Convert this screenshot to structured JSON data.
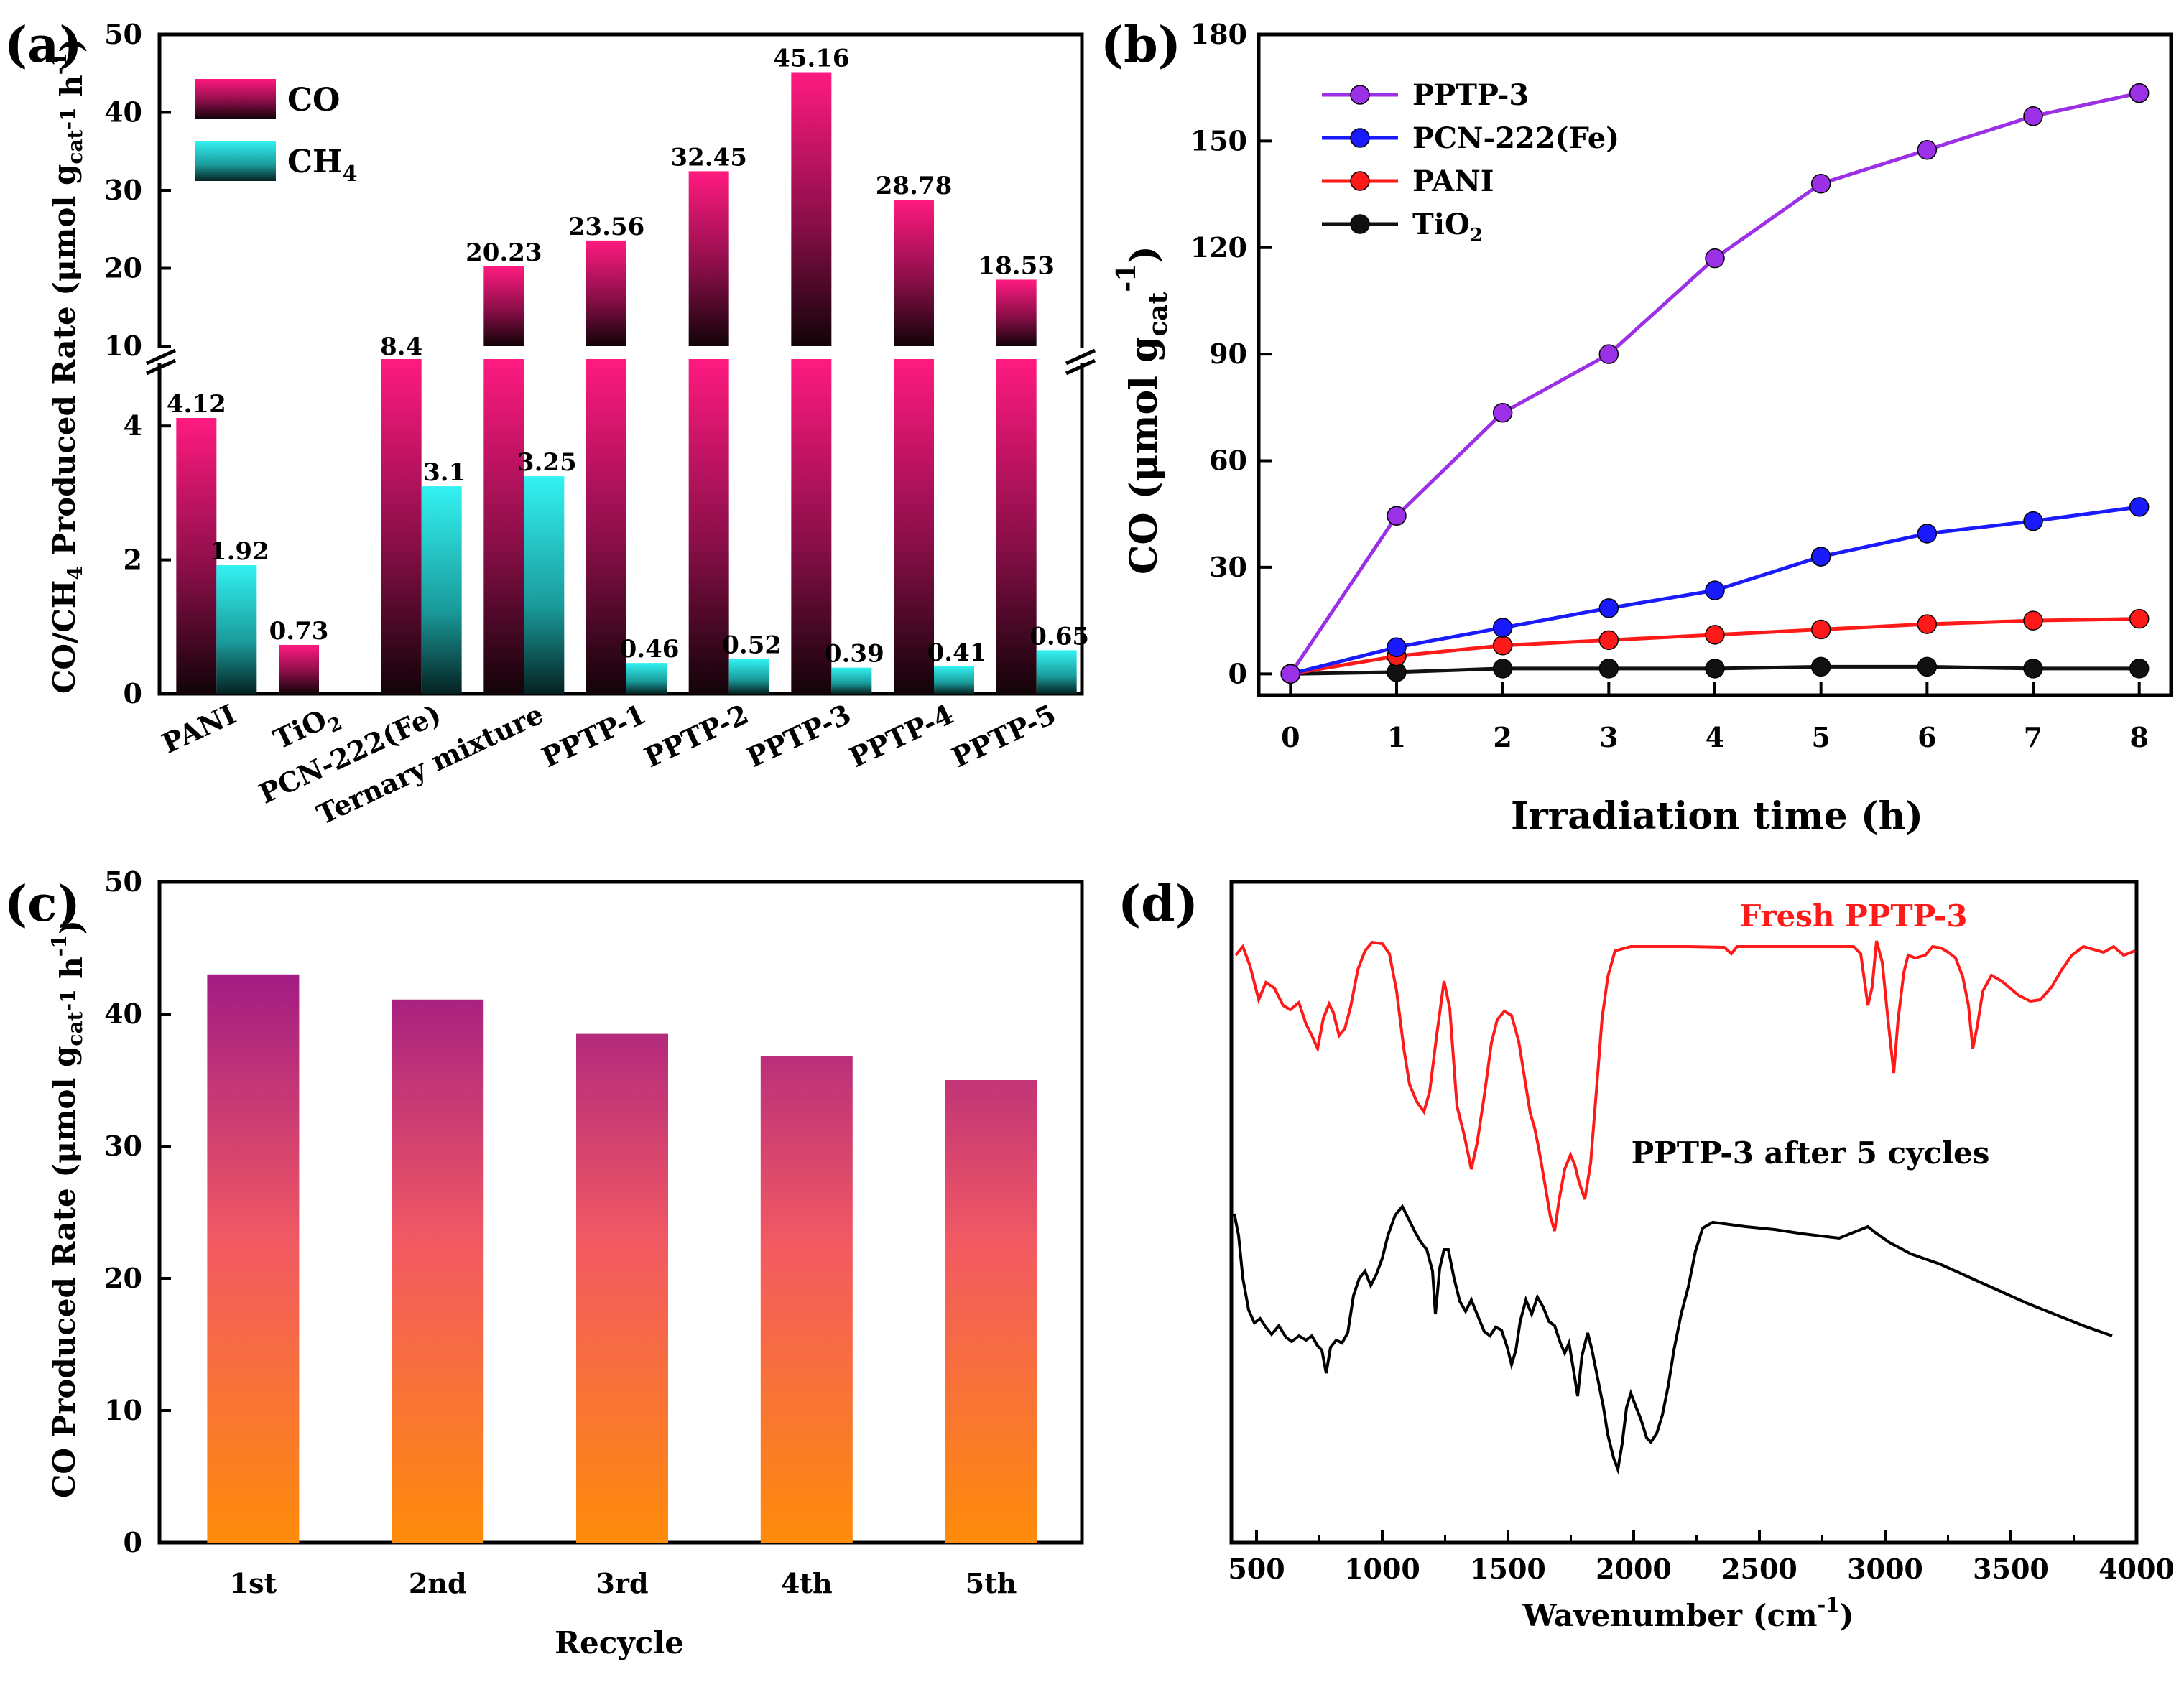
{
  "chart_data": [
    {
      "panel": "(a)",
      "type": "bar",
      "ylabel": "CO/CH",
      "ylabel_sub": "4",
      "ylabel_rest": " Produced Rate (μmol g",
      "ylabel_cat": "cat",
      "ylabel_end": " h",
      "ylabel_exp": "-1",
      "ylabel_exp2": "-1",
      "ylabel_close": ")",
      "broken_axis": {
        "lower": [
          0,
          5
        ],
        "upper": [
          10,
          50
        ]
      },
      "yticks_lower": [
        "0",
        "2",
        "4"
      ],
      "yticks_upper": [
        "10",
        "20",
        "30",
        "40",
        "50"
      ],
      "categories": [
        "PANI",
        "TiO",
        "PCN-222(Fe)",
        "Ternary mixture",
        "PPTP-1",
        "PPTP-2",
        "PPTP-3",
        "PPTP-4",
        "PPTP-5"
      ],
      "tio2_sub": "2",
      "series": [
        {
          "name": "CO",
          "values": [
            4.12,
            0.73,
            8.4,
            20.23,
            23.56,
            32.45,
            45.16,
            28.78,
            18.53
          ],
          "labels": [
            "4.12",
            "0.73",
            "8.4",
            "20.23",
            "23.56",
            "32.45",
            "45.16",
            "28.78",
            "18.53"
          ]
        },
        {
          "name": "CH",
          "name_sub": "4",
          "values": [
            1.92,
            0,
            3.1,
            3.25,
            0.46,
            0.52,
            0.39,
            0.41,
            0.65
          ],
          "labels": [
            "1.92",
            "",
            "3.1",
            "3.25",
            "0.46",
            "0.52",
            "0.39",
            "0.41",
            "0.65"
          ]
        }
      ],
      "colors": {
        "co": "#ff1a80",
        "ch4": "#33f2f2"
      }
    },
    {
      "panel": "(b)",
      "type": "line",
      "xlabel": "Irradiation time (h)",
      "ylabel": "CO (μmol g",
      "ylabel_cat": "cat",
      "ylabel_exp": "-1",
      "ylabel_close": ")",
      "x": [
        0,
        1,
        2,
        3,
        4,
        5,
        6,
        7,
        8
      ],
      "xlim": [
        -0.3,
        8.3
      ],
      "ylim": [
        -6,
        180
      ],
      "xticks": [
        "0",
        "1",
        "2",
        "3",
        "4",
        "5",
        "6",
        "7",
        "8"
      ],
      "yticks": [
        "0",
        "30",
        "60",
        "90",
        "120",
        "150",
        "180"
      ],
      "series": [
        {
          "name": "PPTP-3",
          "color": "#9b30e6",
          "values": [
            0,
            44.5,
            73.5,
            90,
            117,
            138,
            147.5,
            157,
            163.5
          ]
        },
        {
          "name": "PCN-222(Fe)",
          "color": "#1a1aff",
          "values": [
            0,
            7.5,
            13,
            18.5,
            23.5,
            33,
            39.5,
            43,
            47
          ]
        },
        {
          "name": "PANI",
          "color": "#ff1a1a",
          "values": [
            0,
            5,
            8,
            9.5,
            11,
            12.5,
            14,
            15,
            15.5
          ]
        },
        {
          "name": "TiO",
          "name_sub": "2",
          "color": "#111111",
          "values": [
            0,
            0.5,
            1.5,
            1.5,
            1.5,
            2,
            2,
            1.5,
            1.5
          ]
        }
      ]
    },
    {
      "panel": "(c)",
      "type": "bar",
      "xlabel": "Recycle",
      "ylabel": "CO Produced Rate (μmol g",
      "ylabel_cat": "cat",
      "ylabel_end": " h",
      "ylabel_exp": "-1",
      "ylabel_exp2": "-1",
      "ylabel_close": ")",
      "categories": [
        "1st",
        "2nd",
        "3rd",
        "4th",
        "5th"
      ],
      "values": [
        43,
        41.1,
        38.5,
        36.8,
        35
      ],
      "ylim": [
        0,
        50
      ],
      "yticks": [
        "0",
        "10",
        "20",
        "30",
        "40",
        "50"
      ],
      "gradient": {
        "top": "#9a1688",
        "mid": "#f25a62",
        "bottom": "#ff8c0a"
      }
    },
    {
      "panel": "(d)",
      "type": "line",
      "xlabel": "Wavenumber (cm",
      "xlabel_exp": "-1",
      "xlabel_close": ")",
      "xlim": [
        400,
        4000
      ],
      "xticks": [
        "500",
        "1000",
        "1500",
        "2000",
        "2500",
        "3000",
        "3500",
        "4000"
      ],
      "series": [
        {
          "name": "Fresh PPTP-3",
          "color": "#ff1a1a"
        },
        {
          "name": "PPTP-3 after 5 cycles",
          "color": "#000000"
        }
      ]
    }
  ]
}
